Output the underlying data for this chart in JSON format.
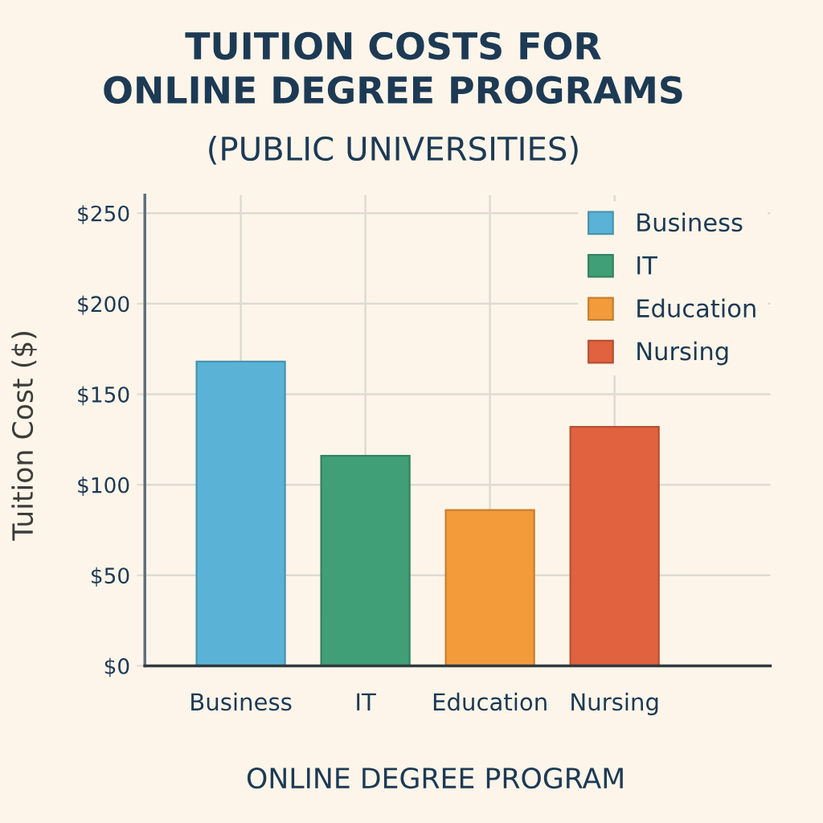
{
  "chart_data": {
    "type": "bar",
    "title": "TUITION COSTS FOR\nONLINE DEGREE PROGRAMS",
    "subtitle": "(PUBLIC UNIVERSITIES)",
    "xlabel": "ONLINE DEGREE PROGRAM",
    "ylabel": "Tuition Cost ($)",
    "categories": [
      "Business",
      "IT",
      "Education",
      "Nursing"
    ],
    "series": [
      {
        "name": "Business",
        "color": "#5ab3d6",
        "values": [
          168,
          null,
          null,
          null
        ]
      },
      {
        "name": "IT",
        "color": "#409f76",
        "values": [
          null,
          116,
          null,
          null
        ]
      },
      {
        "name": "Education",
        "color": "#f39b3b",
        "values": [
          null,
          null,
          86,
          null
        ]
      },
      {
        "name": "Nursing",
        "color": "#e0623f",
        "values": [
          null,
          null,
          null,
          132
        ]
      }
    ],
    "ylim": [
      0,
      260
    ],
    "yticks": [
      {
        "value": 0,
        "label": "$0"
      },
      {
        "value": 50,
        "label": "$50"
      },
      {
        "value": 100,
        "label": "$100"
      },
      {
        "value": 150,
        "label": "$150"
      },
      {
        "value": 200,
        "label": "$200"
      },
      {
        "value": 250,
        "label": "$250"
      }
    ],
    "grid": true,
    "legend": "top right"
  }
}
